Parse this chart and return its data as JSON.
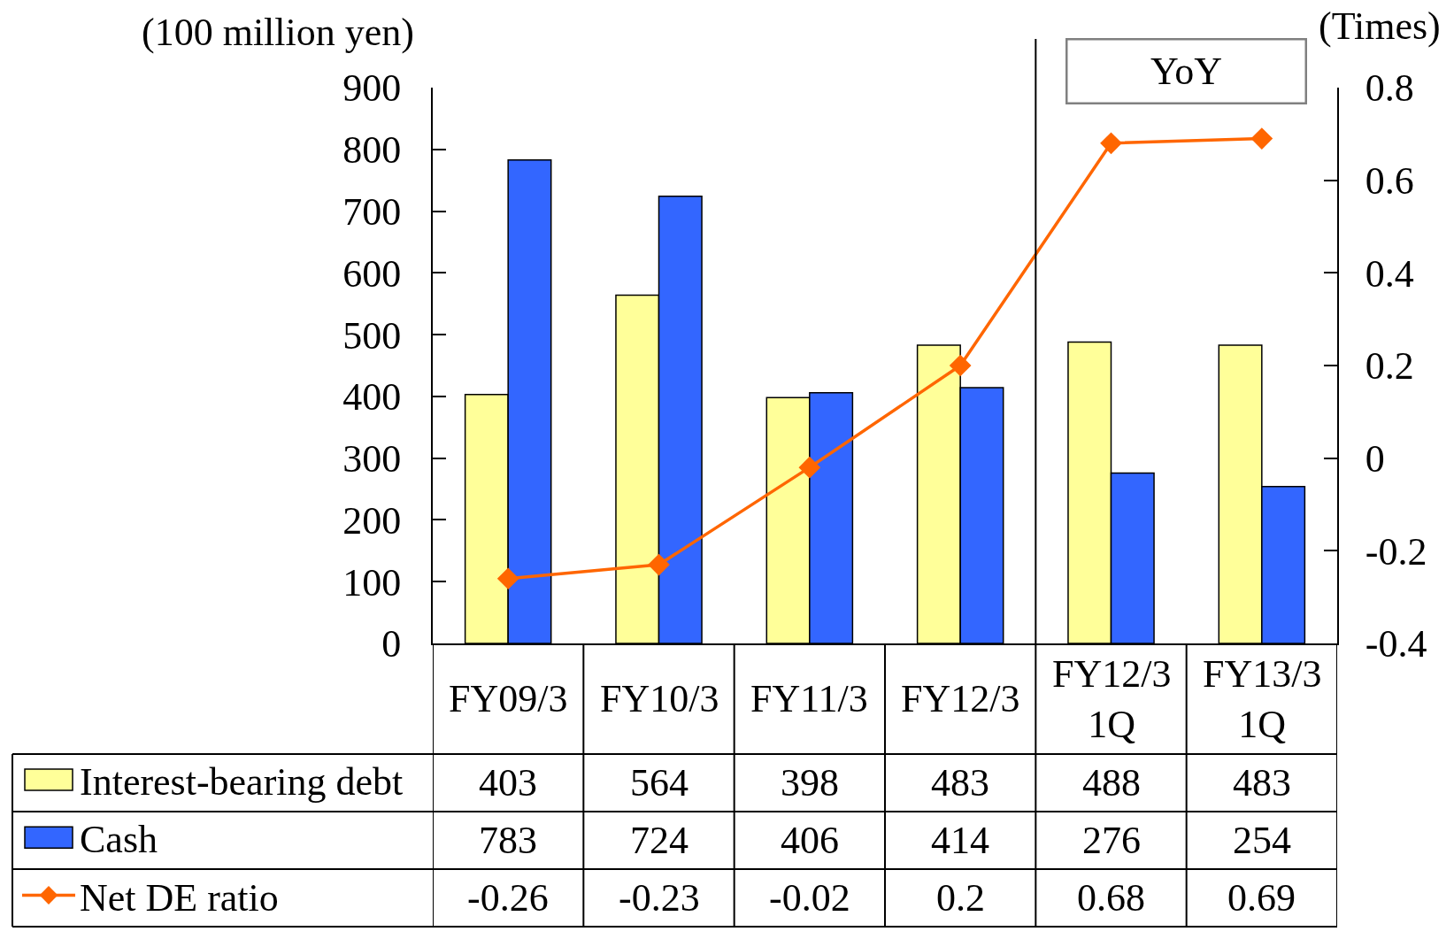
{
  "chart_data": {
    "type": "bar",
    "ylabel": "(100 million yen)",
    "y2label": "(Times)",
    "categories": [
      "FY09/3",
      "FY10/3",
      "FY11/3",
      "FY12/3",
      "FY12/3\n1Q",
      "FY13/3\n1Q"
    ],
    "series": [
      {
        "name": "Interest-bearing debt",
        "color": "#ffff99",
        "values": [
          403,
          564,
          398,
          483,
          488,
          483
        ]
      },
      {
        "name": "Cash",
        "color": "#3366ff",
        "values": [
          783,
          724,
          406,
          414,
          276,
          254
        ]
      },
      {
        "name": "Net DE ratio",
        "type": "line",
        "axis": "y2",
        "color": "#ff6600",
        "values": [
          -0.26,
          -0.23,
          -0.02,
          0.2,
          0.68,
          0.69
        ]
      }
    ],
    "ylim": [
      0,
      900
    ],
    "yticks": [
      0,
      100,
      200,
      300,
      400,
      500,
      600,
      700,
      800,
      900
    ],
    "y2lim": [
      -0.4,
      0.8
    ],
    "y2ticks": [
      -0.4,
      -0.2,
      0,
      0.2,
      0.4,
      0.6,
      0.8
    ],
    "annotations": [
      "YoY"
    ],
    "data_labels": true,
    "legend": "bottom left",
    "marker": "diamond",
    "line_style": "solid"
  }
}
